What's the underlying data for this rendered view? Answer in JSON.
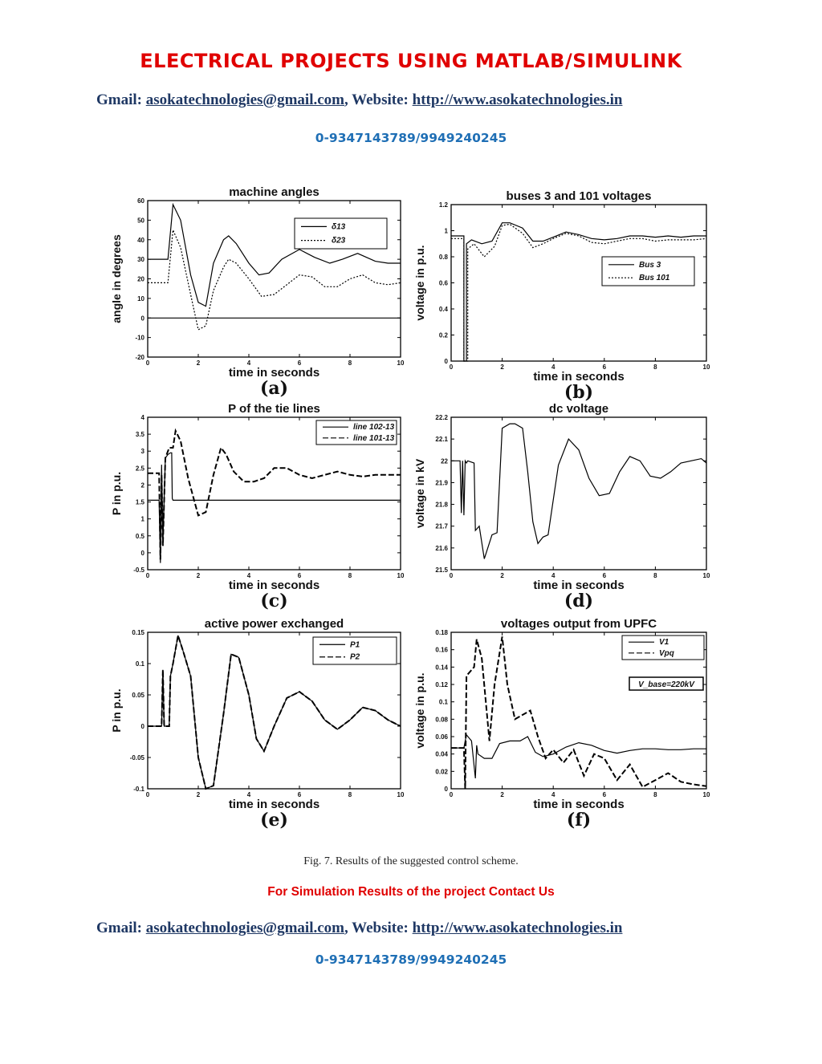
{
  "header": {
    "banner": "ELECTRICAL PROJECTS USING MATLAB/SIMULINK",
    "gmail_label": "Gmail: ",
    "gmail": "asokatechnologies@gmail.com",
    "sep": ", Website: ",
    "website": "http://www.asokatechnologies.in",
    "phone": "0-9347143789/9949240245"
  },
  "caption": "Fig. 7. Results of the suggested control scheme.",
  "contact_us": "For Simulation Results of the project Contact Us",
  "footer": {
    "gmail_label": "Gmail: ",
    "gmail": "asokatechnologies@gmail.com",
    "sep": ", Website: ",
    "website": "http://www.asokatechnologies.in",
    "phone": "0-9347143789/9949240245"
  },
  "chart_data": [
    {
      "type": "line",
      "panel": "(a)",
      "title": "machine angles",
      "xlabel": "time in seconds",
      "ylabel": "angle in degrees",
      "xlim": [
        0,
        10
      ],
      "ylim": [
        -20,
        60
      ],
      "xticks": [
        0,
        2,
        4,
        6,
        8,
        10
      ],
      "yticks": [
        -20,
        -10,
        0,
        10,
        20,
        30,
        40,
        50,
        60
      ],
      "legend": "top-right",
      "series": [
        {
          "name": "δ13",
          "style": "solid",
          "x": [
            0,
            0.8,
            1,
            1.3,
            1.7,
            2,
            2.3,
            2.6,
            3,
            3.2,
            3.5,
            4,
            4.4,
            4.8,
            5.3,
            6,
            6.6,
            7.2,
            7.7,
            8.3,
            9,
            9.5,
            10
          ],
          "y": [
            30,
            30,
            58,
            50,
            22,
            8,
            6,
            28,
            40,
            42,
            38,
            28,
            22,
            23,
            30,
            35,
            31,
            28,
            30,
            33,
            29,
            28,
            28
          ]
        },
        {
          "name": "δ23",
          "style": "dotted",
          "x": [
            0,
            0.8,
            1,
            1.3,
            1.7,
            2,
            2.3,
            2.6,
            3,
            3.2,
            3.5,
            4,
            4.5,
            5,
            5.5,
            6,
            6.5,
            7,
            7.5,
            8,
            8.5,
            9,
            9.5,
            10
          ],
          "y": [
            18,
            18,
            45,
            36,
            12,
            -6,
            -4,
            14,
            26,
            30,
            28,
            20,
            11,
            12,
            17,
            22,
            21,
            16,
            16,
            20,
            22,
            18,
            17,
            18
          ]
        },
        {
          "name": "",
          "style": "solid",
          "x": [
            0,
            10
          ],
          "y": [
            0,
            0
          ]
        }
      ]
    },
    {
      "type": "line",
      "panel": "(b)",
      "title": "buses 3 and 101 voltages",
      "xlabel": "time in seconds",
      "ylabel": "voltage in p.u.",
      "xlim": [
        0,
        10
      ],
      "ylim": [
        0,
        1.2
      ],
      "xticks": [
        0,
        2,
        4,
        6,
        8,
        10
      ],
      "yticks": [
        0,
        0.2,
        0.4,
        0.6,
        0.8,
        1,
        1.2
      ],
      "legend": "right",
      "series": [
        {
          "name": "Bus 3",
          "style": "solid",
          "x": [
            0,
            0.5,
            0.5,
            0.6,
            0.6,
            0.8,
            1.2,
            1.6,
            2,
            2.3,
            2.8,
            3.2,
            3.6,
            4,
            4.5,
            5,
            5.5,
            6,
            6.5,
            7,
            7.5,
            8,
            8.5,
            9,
            9.5,
            10
          ],
          "y": [
            0.96,
            0.96,
            0,
            0,
            0.9,
            0.93,
            0.9,
            0.92,
            1.06,
            1.06,
            1.02,
            0.92,
            0.92,
            0.95,
            0.99,
            0.97,
            0.94,
            0.93,
            0.94,
            0.96,
            0.96,
            0.95,
            0.96,
            0.95,
            0.96,
            0.96
          ]
        },
        {
          "name": "Bus 101",
          "style": "dotted",
          "x": [
            0,
            0.5,
            0.5,
            0.65,
            0.65,
            0.9,
            1.3,
            1.7,
            2,
            2.3,
            2.8,
            3.2,
            3.6,
            4,
            4.5,
            5,
            5.5,
            6,
            6.5,
            7,
            7.5,
            8,
            8.5,
            9,
            9.5,
            10
          ],
          "y": [
            0.94,
            0.94,
            0,
            0,
            0.86,
            0.9,
            0.8,
            0.88,
            1.04,
            1.05,
            0.98,
            0.87,
            0.9,
            0.94,
            0.98,
            0.96,
            0.91,
            0.9,
            0.92,
            0.94,
            0.94,
            0.92,
            0.93,
            0.93,
            0.93,
            0.94
          ]
        }
      ]
    },
    {
      "type": "line",
      "panel": "(c)",
      "title": "P of the tie lines",
      "xlabel": "time in seconds",
      "ylabel": "P in p.u.",
      "xlim": [
        0,
        10
      ],
      "ylim": [
        -0.5,
        4
      ],
      "xticks": [
        0,
        2,
        4,
        6,
        8,
        10
      ],
      "yticks": [
        -0.5,
        0,
        0.5,
        1,
        1.5,
        2,
        2.5,
        3,
        3.5,
        4
      ],
      "legend": "top-right",
      "series": [
        {
          "name": "line 102-13",
          "style": "solid",
          "x": [
            0,
            0.45,
            0.5,
            0.55,
            0.6,
            0.7,
            0.8,
            0.9,
            0.95,
            0.97,
            1,
            10
          ],
          "y": [
            1.55,
            1.55,
            -0.3,
            2.6,
            0.3,
            2.8,
            2.9,
            2.95,
            2.95,
            1.6,
            1.55,
            1.55
          ]
        },
        {
          "name": "line 101-13",
          "style": "dashed",
          "x": [
            0,
            0.45,
            0.5,
            0.55,
            0.6,
            0.7,
            0.85,
            1,
            1.1,
            1.3,
            1.6,
            2,
            2.3,
            2.6,
            2.9,
            3.1,
            3.4,
            3.8,
            4.2,
            4.6,
            5,
            5.5,
            6,
            6.5,
            7,
            7.5,
            8,
            8.5,
            9,
            9.5,
            10
          ],
          "y": [
            2.35,
            2.35,
            -0.2,
            2.3,
            0.2,
            2.8,
            3.1,
            3.1,
            3.6,
            3.3,
            2.2,
            1.1,
            1.2,
            2.3,
            3.1,
            2.9,
            2.4,
            2.1,
            2.1,
            2.2,
            2.5,
            2.5,
            2.3,
            2.2,
            2.3,
            2.4,
            2.3,
            2.25,
            2.3,
            2.3,
            2.3
          ]
        }
      ]
    },
    {
      "type": "line",
      "panel": "(d)",
      "title": "dc voltage",
      "xlabel": "time in seconds",
      "ylabel": "voltage in kV",
      "xlim": [
        0,
        10
      ],
      "ylim": [
        21.5,
        22.2
      ],
      "xticks": [
        0,
        2,
        4,
        6,
        8,
        10
      ],
      "yticks": [
        21.5,
        21.6,
        21.7,
        21.8,
        21.9,
        22,
        22.1,
        22.2
      ],
      "series": [
        {
          "name": "",
          "style": "solid",
          "x": [
            0,
            0.35,
            0.4,
            0.45,
            0.5,
            0.55,
            0.6,
            0.65,
            0.9,
            0.95,
            1.1,
            1.3,
            1.6,
            1.8,
            2,
            2.3,
            2.5,
            2.8,
            3,
            3.2,
            3.4,
            3.6,
            3.8,
            4.2,
            4.6,
            5,
            5.4,
            5.8,
            6.2,
            6.6,
            7,
            7.4,
            7.8,
            8.2,
            8.6,
            9,
            9.4,
            9.8,
            10
          ],
          "y": [
            22,
            22,
            21.76,
            22,
            21.75,
            22,
            21.99,
            22,
            21.99,
            21.68,
            21.7,
            21.55,
            21.66,
            21.67,
            22.15,
            22.17,
            22.17,
            22.15,
            21.95,
            21.72,
            21.62,
            21.65,
            21.66,
            21.98,
            22.1,
            22.05,
            21.92,
            21.84,
            21.85,
            21.95,
            22.02,
            22,
            21.93,
            21.92,
            21.95,
            21.99,
            22,
            22.01,
            21.99
          ]
        }
      ]
    },
    {
      "type": "line",
      "panel": "(e)",
      "title": "active power exchanged",
      "xlabel": "time in seconds",
      "ylabel": "P in p.u.",
      "xlim": [
        0,
        10
      ],
      "ylim": [
        -0.1,
        0.15
      ],
      "xticks": [
        0,
        2,
        4,
        6,
        8,
        10
      ],
      "yticks": [
        -0.1,
        -0.05,
        0,
        0.05,
        0.1,
        0.15
      ],
      "legend": "top-right",
      "series": [
        {
          "name": "P1",
          "style": "solid",
          "x": [
            0,
            0.55,
            0.6,
            0.65,
            0.7,
            0.85,
            0.9,
            1,
            1.2,
            1.4,
            1.7,
            2,
            2.3,
            2.6,
            3,
            3.3,
            3.6,
            4,
            4.3,
            4.6,
            5,
            5.5,
            6,
            6.5,
            7,
            7.5,
            8,
            8.5,
            9,
            9.5,
            10
          ],
          "y": [
            0,
            0,
            0.09,
            0,
            0,
            0,
            0.08,
            0.1,
            0.145,
            0.12,
            0.08,
            -0.05,
            -0.1,
            -0.095,
            0.02,
            0.115,
            0.11,
            0.05,
            -0.02,
            -0.04,
            0,
            0.045,
            0.055,
            0.04,
            0.01,
            -0.005,
            0.01,
            0.03,
            0.025,
            0.01,
            0
          ]
        },
        {
          "name": "P2",
          "style": "dashed",
          "x": [
            0,
            0.55,
            0.6,
            0.65,
            0.7,
            0.85,
            0.9,
            1,
            1.2,
            1.4,
            1.7,
            2,
            2.3,
            2.6,
            3,
            3.3,
            3.6,
            4,
            4.3,
            4.6,
            5,
            5.5,
            6,
            6.5,
            7,
            7.5,
            8,
            8.5,
            9,
            9.5,
            10
          ],
          "y": [
            0,
            0,
            0.09,
            0,
            0,
            0,
            0.08,
            0.1,
            0.145,
            0.12,
            0.08,
            -0.05,
            -0.1,
            -0.095,
            0.02,
            0.115,
            0.11,
            0.05,
            -0.02,
            -0.04,
            0,
            0.045,
            0.055,
            0.04,
            0.01,
            -0.005,
            0.01,
            0.03,
            0.025,
            0.01,
            0
          ]
        }
      ]
    },
    {
      "type": "line",
      "panel": "(f)",
      "title": "voltages output from UPFC",
      "xlabel": "time in seconds",
      "ylabel": "voltage in p.u.",
      "xlim": [
        0,
        10
      ],
      "ylim": [
        0,
        0.18
      ],
      "xticks": [
        0,
        2,
        4,
        6,
        8,
        10
      ],
      "yticks": [
        0,
        0.02,
        0.04,
        0.06,
        0.08,
        0.1,
        0.12,
        0.14,
        0.16,
        0.18
      ],
      "legend": "top-right",
      "annotation": "V_base=220kV",
      "series": [
        {
          "name": "V1",
          "style": "solid",
          "x": [
            0,
            0.5,
            0.55,
            0.6,
            0.8,
            0.95,
            1,
            1.05,
            1.3,
            1.6,
            1.9,
            2.3,
            2.7,
            3,
            3.3,
            3.6,
            4,
            4.5,
            5,
            5.5,
            6,
            6.5,
            7,
            7.5,
            8,
            8.5,
            9,
            9.5,
            10
          ],
          "y": [
            0.047,
            0.047,
            0.055,
            0.062,
            0.055,
            0.012,
            0.05,
            0.04,
            0.035,
            0.035,
            0.052,
            0.055,
            0.055,
            0.06,
            0.042,
            0.037,
            0.04,
            0.048,
            0.053,
            0.05,
            0.044,
            0.041,
            0.044,
            0.046,
            0.046,
            0.045,
            0.045,
            0.046,
            0.046
          ]
        },
        {
          "name": "Vpq",
          "style": "dashed",
          "x": [
            0,
            0.5,
            0.55,
            0.6,
            0.9,
            1,
            1.2,
            1.5,
            1.7,
            2,
            2.2,
            2.5,
            2.8,
            3.1,
            3.4,
            3.7,
            4,
            4.4,
            4.8,
            5.2,
            5.6,
            6,
            6.5,
            7,
            7.5,
            8,
            8.5,
            9,
            9.5,
            10
          ],
          "y": [
            0.047,
            0.047,
            0,
            0.13,
            0.14,
            0.172,
            0.15,
            0.055,
            0.12,
            0.175,
            0.12,
            0.08,
            0.085,
            0.09,
            0.06,
            0.035,
            0.045,
            0.03,
            0.045,
            0.015,
            0.04,
            0.035,
            0.01,
            0.028,
            0.002,
            0.01,
            0.018,
            0.008,
            0.005,
            0.003
          ]
        }
      ]
    }
  ]
}
